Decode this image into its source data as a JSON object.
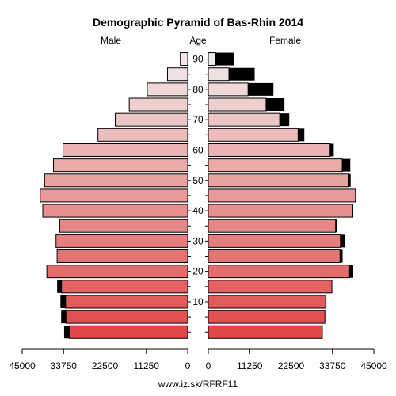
{
  "chart_data": {
    "type": "bar",
    "title": "Demographic Pyramid of Bas-Rhin 2014",
    "left_label": "Male",
    "center_label": "Age",
    "right_label": "Female",
    "source": "www.iz.sk/RFRF11",
    "age_groups": [
      "0-4",
      "5-9",
      "10-14",
      "15-19",
      "20-24",
      "25-29",
      "30-34",
      "35-39",
      "40-44",
      "45-49",
      "50-54",
      "55-59",
      "60-64",
      "65-69",
      "70-74",
      "75-79",
      "80-84",
      "85-89",
      "90+"
    ],
    "age_tick_labels": [
      "10",
      "20",
      "30",
      "40",
      "50",
      "60",
      "70",
      "80",
      "90"
    ],
    "x_tick_labels_left": [
      "45000",
      "33750",
      "22500",
      "11250",
      "0"
    ],
    "x_tick_labels_right": [
      "0",
      "11250",
      "22500",
      "33750",
      "45000"
    ],
    "xlim": [
      0,
      45000
    ],
    "series": [
      {
        "name": "Male",
        "values": [
          32200,
          33100,
          33200,
          34300,
          38300,
          35500,
          35800,
          34800,
          39400,
          40100,
          38900,
          36500,
          33900,
          24400,
          19700,
          15900,
          11000,
          5500,
          2000
        ],
        "excess": [
          1400,
          1300,
          1400,
          1200,
          0,
          0,
          0,
          0,
          0,
          0,
          0,
          0,
          0,
          0,
          0,
          0,
          0,
          0,
          0
        ]
      },
      {
        "name": "Female",
        "values": [
          31000,
          31700,
          31900,
          33600,
          38400,
          35800,
          35900,
          34600,
          39300,
          40000,
          38200,
          36400,
          33100,
          24400,
          19400,
          15700,
          10800,
          5600,
          2000
        ],
        "excess": [
          0,
          0,
          0,
          0,
          1000,
          700,
          1300,
          500,
          0,
          0,
          500,
          2200,
          1000,
          1700,
          2600,
          5000,
          6900,
          7000,
          4900
        ]
      }
    ],
    "colors": {
      "excess": "#000000",
      "young": "#e04848",
      "old": "#f0eaea",
      "background": "#ffffff"
    }
  }
}
